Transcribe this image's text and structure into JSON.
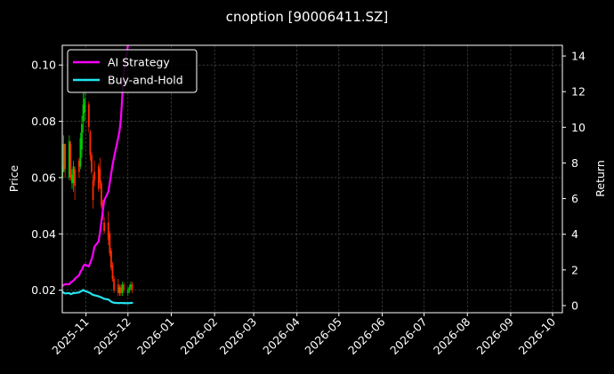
{
  "chart_data": {
    "type": "line",
    "title": "cnoption [90006411.SZ]",
    "xlabel": "",
    "ylabel_left": "Price",
    "ylabel_right": "Return",
    "x_range": [
      "2025-10-15",
      "2026-10-08"
    ],
    "x_ticks": [
      "2025-11",
      "2025-12",
      "2026-01",
      "2026-02",
      "2026-03",
      "2026-04",
      "2026-05",
      "2026-06",
      "2026-07",
      "2026-08",
      "2026-09",
      "2026-10"
    ],
    "x_tick_dates": [
      "2025-11-01",
      "2025-12-01",
      "2026-01-01",
      "2026-02-01",
      "2026-03-01",
      "2026-04-01",
      "2026-05-01",
      "2026-06-01",
      "2026-07-01",
      "2026-08-01",
      "2026-09-01",
      "2026-10-01"
    ],
    "y_left": {
      "lim": [
        0.012,
        0.107
      ],
      "ticks": [
        0.02,
        0.04,
        0.06,
        0.08,
        0.1
      ],
      "tick_labels": [
        "0.02",
        "0.04",
        "0.06",
        "0.08",
        "0.10"
      ]
    },
    "y_right": {
      "lim": [
        -0.4,
        14.6
      ],
      "ticks": [
        0,
        2,
        4,
        6,
        8,
        10,
        12,
        14
      ],
      "tick_labels": [
        "0",
        "2",
        "4",
        "6",
        "8",
        "10",
        "12",
        "14"
      ]
    },
    "grid": true,
    "legend_position": "top-left",
    "colors": {
      "background": "#000000",
      "up": "#00cc00",
      "down": "#ff2a00",
      "strategy": "#ff00ff",
      "buyhold": "#22e5f0",
      "grid": "#5a5a5a"
    },
    "candles": [
      [
        "2025-10-15",
        0.06,
        0.07,
        0.058,
        0.064
      ],
      [
        "2025-10-16",
        0.062,
        0.075,
        0.062,
        0.072
      ],
      [
        "2025-10-17",
        0.072,
        0.072,
        0.06,
        0.063
      ],
      [
        "2025-10-20",
        0.06,
        0.075,
        0.059,
        0.073
      ],
      [
        "2025-10-21",
        0.072,
        0.073,
        0.059,
        0.06
      ],
      [
        "2025-10-22",
        0.058,
        0.063,
        0.056,
        0.061
      ],
      [
        "2025-10-23",
        0.058,
        0.066,
        0.055,
        0.064
      ],
      [
        "2025-10-24",
        0.063,
        0.064,
        0.052,
        0.057
      ],
      [
        "2025-10-27",
        0.066,
        0.067,
        0.06,
        0.062
      ],
      [
        "2025-10-28",
        0.064,
        0.076,
        0.063,
        0.074
      ],
      [
        "2025-10-29",
        0.07,
        0.082,
        0.067,
        0.079
      ],
      [
        "2025-10-30",
        0.08,
        0.09,
        0.076,
        0.086
      ],
      [
        "2025-10-31",
        0.083,
        0.092,
        0.08,
        0.088
      ],
      [
        "2025-11-03",
        0.086,
        0.087,
        0.076,
        0.078
      ],
      [
        "2025-11-04",
        0.076,
        0.077,
        0.066,
        0.068
      ],
      [
        "2025-11-05",
        0.068,
        0.069,
        0.061,
        0.062
      ],
      [
        "2025-11-06",
        0.059,
        0.061,
        0.049,
        0.052
      ],
      [
        "2025-11-07",
        0.062,
        0.066,
        0.057,
        0.059
      ],
      [
        "2025-11-10",
        0.064,
        0.065,
        0.055,
        0.056
      ],
      [
        "2025-11-11",
        0.063,
        0.067,
        0.056,
        0.058
      ],
      [
        "2025-11-12",
        0.058,
        0.059,
        0.049,
        0.05
      ],
      [
        "2025-11-13",
        0.051,
        0.052,
        0.045,
        0.046
      ],
      [
        "2025-11-14",
        0.044,
        0.046,
        0.04,
        0.041
      ],
      [
        "2025-11-17",
        0.044,
        0.048,
        0.036,
        0.038
      ],
      [
        "2025-11-18",
        0.04,
        0.041,
        0.032,
        0.033
      ],
      [
        "2025-11-19",
        0.034,
        0.035,
        0.027,
        0.028
      ],
      [
        "2025-11-20",
        0.029,
        0.03,
        0.023,
        0.024
      ],
      [
        "2025-11-21",
        0.024,
        0.025,
        0.019,
        0.02
      ],
      [
        "2025-11-24",
        0.022,
        0.024,
        0.018,
        0.019
      ],
      [
        "2025-11-25",
        0.019,
        0.022,
        0.018,
        0.021
      ],
      [
        "2025-11-26",
        0.021,
        0.022,
        0.018,
        0.019
      ],
      [
        "2025-11-27",
        0.019,
        0.023,
        0.018,
        0.022
      ],
      [
        "2025-11-28",
        0.022,
        0.023,
        0.019,
        0.02
      ],
      [
        "2025-12-01",
        0.019,
        0.021,
        0.018,
        0.02
      ],
      [
        "2025-12-02",
        0.02,
        0.022,
        0.019,
        0.021
      ],
      [
        "2025-12-03",
        0.021,
        0.023,
        0.02,
        0.022
      ],
      [
        "2025-12-04",
        0.022,
        0.023,
        0.019,
        0.02
      ]
    ],
    "series": [
      {
        "name": "AI Strategy",
        "axis": "right",
        "points": [
          [
            "2025-10-15",
            1.1
          ],
          [
            "2025-10-17",
            1.2
          ],
          [
            "2025-10-20",
            1.2
          ],
          [
            "2025-10-21",
            1.3
          ],
          [
            "2025-10-23",
            1.4
          ],
          [
            "2025-10-24",
            1.5
          ],
          [
            "2025-10-27",
            1.7
          ],
          [
            "2025-10-28",
            1.9
          ],
          [
            "2025-10-29",
            2.0
          ],
          [
            "2025-10-30",
            2.2
          ],
          [
            "2025-10-31",
            2.3
          ],
          [
            "2025-11-03",
            2.2
          ],
          [
            "2025-11-04",
            2.4
          ],
          [
            "2025-11-05",
            2.6
          ],
          [
            "2025-11-06",
            2.9
          ],
          [
            "2025-11-07",
            3.3
          ],
          [
            "2025-11-10",
            3.6
          ],
          [
            "2025-11-11",
            4.1
          ],
          [
            "2025-11-12",
            4.7
          ],
          [
            "2025-11-13",
            5.3
          ],
          [
            "2025-11-14",
            5.9
          ],
          [
            "2025-11-17",
            6.4
          ],
          [
            "2025-11-18",
            6.9
          ],
          [
            "2025-11-19",
            7.4
          ],
          [
            "2025-11-20",
            7.9
          ],
          [
            "2025-11-21",
            8.3
          ],
          [
            "2025-11-24",
            9.4
          ],
          [
            "2025-11-25",
            9.8
          ],
          [
            "2025-11-26",
            10.5
          ],
          [
            "2025-11-27",
            11.8
          ],
          [
            "2025-11-28",
            13.0
          ],
          [
            "2025-12-01",
            14.6
          ]
        ]
      },
      {
        "name": "Buy-and-Hold",
        "axis": "right",
        "points": [
          [
            "2025-10-15",
            0.78
          ],
          [
            "2025-10-16",
            0.72
          ],
          [
            "2025-10-17",
            0.68
          ],
          [
            "2025-10-20",
            0.7
          ],
          [
            "2025-10-21",
            0.64
          ],
          [
            "2025-10-22",
            0.66
          ],
          [
            "2025-10-23",
            0.72
          ],
          [
            "2025-10-24",
            0.7
          ],
          [
            "2025-10-27",
            0.74
          ],
          [
            "2025-10-28",
            0.78
          ],
          [
            "2025-10-29",
            0.82
          ],
          [
            "2025-10-30",
            0.88
          ],
          [
            "2025-10-31",
            0.82
          ],
          [
            "2025-11-03",
            0.74
          ],
          [
            "2025-11-04",
            0.7
          ],
          [
            "2025-11-05",
            0.64
          ],
          [
            "2025-11-06",
            0.6
          ],
          [
            "2025-11-07",
            0.58
          ],
          [
            "2025-11-10",
            0.52
          ],
          [
            "2025-11-11",
            0.48
          ],
          [
            "2025-11-12",
            0.46
          ],
          [
            "2025-11-13",
            0.42
          ],
          [
            "2025-11-14",
            0.38
          ],
          [
            "2025-11-17",
            0.34
          ],
          [
            "2025-11-18",
            0.28
          ],
          [
            "2025-11-19",
            0.22
          ],
          [
            "2025-11-20",
            0.18
          ],
          [
            "2025-11-21",
            0.16
          ],
          [
            "2025-11-24",
            0.14
          ],
          [
            "2025-11-25",
            0.14
          ],
          [
            "2025-11-26",
            0.15
          ],
          [
            "2025-11-27",
            0.14
          ],
          [
            "2025-11-28",
            0.14
          ],
          [
            "2025-12-01",
            0.13
          ],
          [
            "2025-12-02",
            0.14
          ],
          [
            "2025-12-03",
            0.15
          ],
          [
            "2025-12-04",
            0.15
          ]
        ]
      }
    ]
  }
}
